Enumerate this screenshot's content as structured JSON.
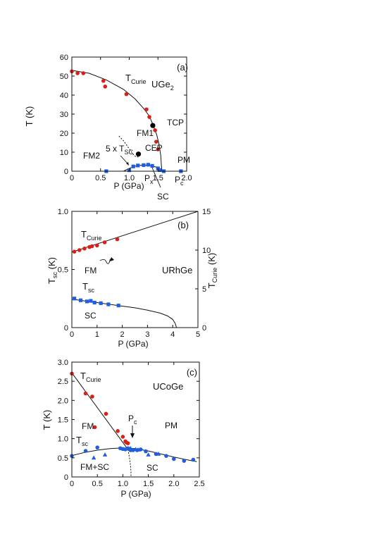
{
  "colors": {
    "red": "#d8201a",
    "blue": "#1f5ee0",
    "axis": "#111111"
  },
  "chart_data": [
    {
      "type": "scatter",
      "panel_label": "(a)",
      "title": "",
      "compound_parts": [
        "UGe",
        "2"
      ],
      "xlabel": "P (GPa)",
      "ylabel": "T (K)",
      "xlim": [
        0,
        2.0
      ],
      "ylim": [
        0,
        60
      ],
      "xticks": [
        0,
        0.5,
        1.0,
        1.5,
        2.0
      ],
      "xtick_labels": [
        "0",
        "0.5",
        "1.0",
        "1.5",
        "2.0"
      ],
      "yticks": [
        0,
        10,
        20,
        30,
        40,
        50,
        60
      ],
      "grid": false,
      "series": [
        {
          "name": "TCurie",
          "color": "#d8201a",
          "marker": "circle",
          "points": [
            [
              0.0,
              52.5
            ],
            [
              0.1,
              51.5
            ],
            [
              0.2,
              51.5
            ],
            [
              0.55,
              47.5
            ],
            [
              0.58,
              44.5
            ],
            [
              0.95,
              40.5
            ],
            [
              1.3,
              32.5
            ],
            [
              1.35,
              28.5
            ],
            [
              1.45,
              21.5
            ],
            [
              1.47,
              15.5
            ],
            [
              1.5,
              11.5
            ]
          ]
        },
        {
          "name": "5 x TSC",
          "color": "#1f5ee0",
          "marker": "square",
          "points": [
            [
              0.6,
              0
            ],
            [
              1.0,
              0.5
            ],
            [
              1.07,
              2.5
            ],
            [
              1.15,
              3
            ],
            [
              1.25,
              3.2
            ],
            [
              1.33,
              3.4
            ],
            [
              1.4,
              2.8
            ],
            [
              1.5,
              1.5
            ],
            [
              1.53,
              0.6
            ],
            [
              1.6,
              0
            ],
            [
              1.9,
              0
            ]
          ]
        }
      ],
      "special_points": [
        {
          "label": "TCP",
          "x": 1.41,
          "y": 24
        },
        {
          "label": "CEP",
          "x": 1.16,
          "y": 9
        }
      ],
      "curves": {
        "tcurie": [
          [
            0,
            53
          ],
          [
            0.3,
            51.5
          ],
          [
            0.6,
            48
          ],
          [
            0.9,
            43
          ],
          [
            1.1,
            38
          ],
          [
            1.25,
            33
          ],
          [
            1.35,
            29
          ],
          [
            1.42,
            24
          ],
          [
            1.48,
            19
          ],
          [
            1.52,
            14
          ],
          [
            1.55,
            8
          ],
          [
            1.56,
            3
          ],
          [
            1.57,
            0
          ]
        ],
        "fm1_fm2_dashed": [
          [
            0.82,
            18.5
          ],
          [
            0.9,
            16
          ],
          [
            0.97,
            13
          ],
          [
            1.03,
            10.5
          ],
          [
            1.08,
            8.5
          ],
          [
            1.12,
            7.5
          ],
          [
            1.16,
            7.5
          ]
        ],
        "tsc_curve": [
          [
            0.9,
            0
          ],
          [
            1.0,
            1.5
          ],
          [
            1.1,
            2.6
          ],
          [
            1.2,
            3.1
          ],
          [
            1.3,
            3.2
          ],
          [
            1.4,
            2.8
          ],
          [
            1.5,
            1.8
          ],
          [
            1.58,
            0.5
          ],
          [
            1.6,
            0
          ]
        ]
      },
      "annotations": {
        "tcurie_main": "T",
        "tcurie_sub": "Curie",
        "fm1": "FM1",
        "fm2": "FM2",
        "pm": "PM",
        "sc": "SC",
        "tcp": "TCP",
        "cep": "CEP",
        "tsc_main": "5 x T",
        "tsc_sub": "SC",
        "px_main": "P",
        "px_sub": "x",
        "pc_main": "P",
        "pc_sub": "c"
      }
    },
    {
      "type": "scatter",
      "panel_label": "(b)",
      "title": "URhGe",
      "xlabel": "P (GPa)",
      "ylabel_main": "T",
      "ylabel_sub": "sc",
      "ylabel_unit": " (K)",
      "y2label_main": "T",
      "y2label_sub": "Curie",
      "y2label_unit": " (K)",
      "xlim": [
        0,
        5
      ],
      "ylim": [
        0,
        1.0
      ],
      "y2lim": [
        0,
        15
      ],
      "xticks": [
        0,
        1,
        2,
        3,
        4,
        5
      ],
      "yticks": [
        0,
        0.5,
        1.0
      ],
      "ytick_labels": [
        "0",
        "0.5",
        "1.0"
      ],
      "y2ticks": [
        0,
        5,
        10,
        15
      ],
      "grid": false,
      "series": [
        {
          "name": "TCurie",
          "axis": "right",
          "color": "#d8201a",
          "marker": "circle",
          "points": [
            [
              0.1,
              9.8
            ],
            [
              0.3,
              10.0
            ],
            [
              0.5,
              10.2
            ],
            [
              0.7,
              10.4
            ],
            [
              0.8,
              10.5
            ],
            [
              1.0,
              10.6
            ],
            [
              1.3,
              11.0
            ],
            [
              1.8,
              11.4
            ]
          ]
        },
        {
          "name": "Tsc",
          "axis": "left",
          "color": "#1f5ee0",
          "marker": "square",
          "points": [
            [
              0.1,
              0.25
            ],
            [
              0.35,
              0.235
            ],
            [
              0.6,
              0.225
            ],
            [
              0.75,
              0.23
            ],
            [
              0.9,
              0.215
            ],
            [
              1.15,
              0.21
            ],
            [
              1.45,
              0.2
            ],
            [
              1.85,
              0.19
            ]
          ]
        }
      ],
      "curves": {
        "tcurie_line_right": [
          [
            0,
            9.75
          ],
          [
            5,
            15
          ]
        ],
        "tsc_curve": [
          [
            0,
            0.245
          ],
          [
            0.5,
            0.23
          ],
          [
            1.0,
            0.215
          ],
          [
            1.5,
            0.2
          ],
          [
            2.0,
            0.185
          ],
          [
            2.5,
            0.17
          ],
          [
            3.0,
            0.15
          ],
          [
            3.5,
            0.125
          ],
          [
            3.8,
            0.1
          ],
          [
            4.0,
            0.07
          ],
          [
            4.1,
            0.035
          ],
          [
            4.15,
            0
          ]
        ]
      },
      "annotations": {
        "tcurie_main": "T",
        "tcurie_sub": "Curie",
        "tsc_main": "T",
        "tsc_sub": "sc",
        "fm": "FM",
        "sc": "SC"
      }
    },
    {
      "type": "scatter",
      "panel_label": "(c)",
      "title": "UCoGe",
      "xlabel": "P (GPa)",
      "ylabel": "T (K)",
      "xlim": [
        0,
        2.5
      ],
      "ylim": [
        0,
        3.0
      ],
      "xticks": [
        0,
        0.5,
        1.0,
        1.5,
        2.0,
        2.5
      ],
      "xtick_labels": [
        "0",
        "0.5",
        "1.0",
        "1.5",
        "2.0",
        "2.5"
      ],
      "yticks": [
        0,
        0.5,
        1.0,
        1.5,
        2.0,
        2.5,
        3.0
      ],
      "ytick_labels": [
        "0",
        "0.5",
        "1.0",
        "1.5",
        "2.0",
        "2.5",
        "3.0"
      ],
      "grid": false,
      "series": [
        {
          "name": "TCurie",
          "color": "#d8201a",
          "marker": "circle",
          "points": [
            [
              0.0,
              2.7
            ],
            [
              0.27,
              2.18
            ],
            [
              0.4,
              2.1
            ],
            [
              0.67,
              1.65
            ],
            [
              0.45,
              1.3
            ],
            [
              0.9,
              1.2
            ],
            [
              1.0,
              1.05
            ],
            [
              1.05,
              0.93
            ],
            [
              1.07,
              0.9
            ],
            [
              1.1,
              0.88
            ]
          ]
        },
        {
          "name": "Tsc",
          "color": "#1f5ee0",
          "marker": "circle",
          "points": [
            [
              0.0,
              0.55
            ],
            [
              0.27,
              0.68
            ],
            [
              0.5,
              0.77
            ],
            [
              0.95,
              0.75
            ],
            [
              1.0,
              0.73
            ],
            [
              1.05,
              0.72
            ],
            [
              1.1,
              0.75
            ],
            [
              1.15,
              0.7
            ],
            [
              1.2,
              0.7
            ],
            [
              1.28,
              0.7
            ],
            [
              1.35,
              0.72
            ],
            [
              1.45,
              0.67
            ],
            [
              1.65,
              0.6
            ],
            [
              1.85,
              0.55
            ],
            [
              2.0,
              0.47
            ],
            [
              2.2,
              0.42
            ],
            [
              2.38,
              0.45
            ]
          ]
        },
        {
          "name": "Tsc (triangles)",
          "color": "#1f5ee0",
          "marker": "triangle",
          "points": [
            [
              0.43,
              0.5
            ],
            [
              0.65,
              0.58
            ],
            [
              1.15,
              0.75
            ],
            [
              1.25,
              0.72
            ],
            [
              1.3,
              0.71
            ],
            [
              1.5,
              0.58
            ],
            [
              1.7,
              0.6
            ]
          ]
        }
      ],
      "curves": {
        "tcurie_line": [
          [
            0,
            2.72
          ],
          [
            1.1,
            0.72
          ]
        ],
        "tsc_curve": [
          [
            0,
            0.56
          ],
          [
            0.25,
            0.64
          ],
          [
            0.5,
            0.7
          ],
          [
            0.75,
            0.74
          ],
          [
            1.0,
            0.76
          ],
          [
            1.25,
            0.74
          ],
          [
            1.5,
            0.68
          ],
          [
            1.75,
            0.6
          ],
          [
            2.0,
            0.52
          ],
          [
            2.25,
            0.45
          ],
          [
            2.45,
            0.4
          ]
        ],
        "fm_dashed": [
          [
            1.1,
            0.72
          ],
          [
            1.13,
            0.5
          ],
          [
            1.15,
            0.3
          ],
          [
            1.16,
            0.1
          ],
          [
            1.16,
            0
          ]
        ]
      },
      "annotations": {
        "tcurie_main": "T",
        "tcurie_sub": "Curie",
        "tsc_main": "T",
        "tsc_sub": "sc",
        "pc_main": "P",
        "pc_sub": "c",
        "fm": "FM",
        "pm": "PM",
        "fmsc": "FM+SC",
        "sc": "SC"
      }
    }
  ]
}
